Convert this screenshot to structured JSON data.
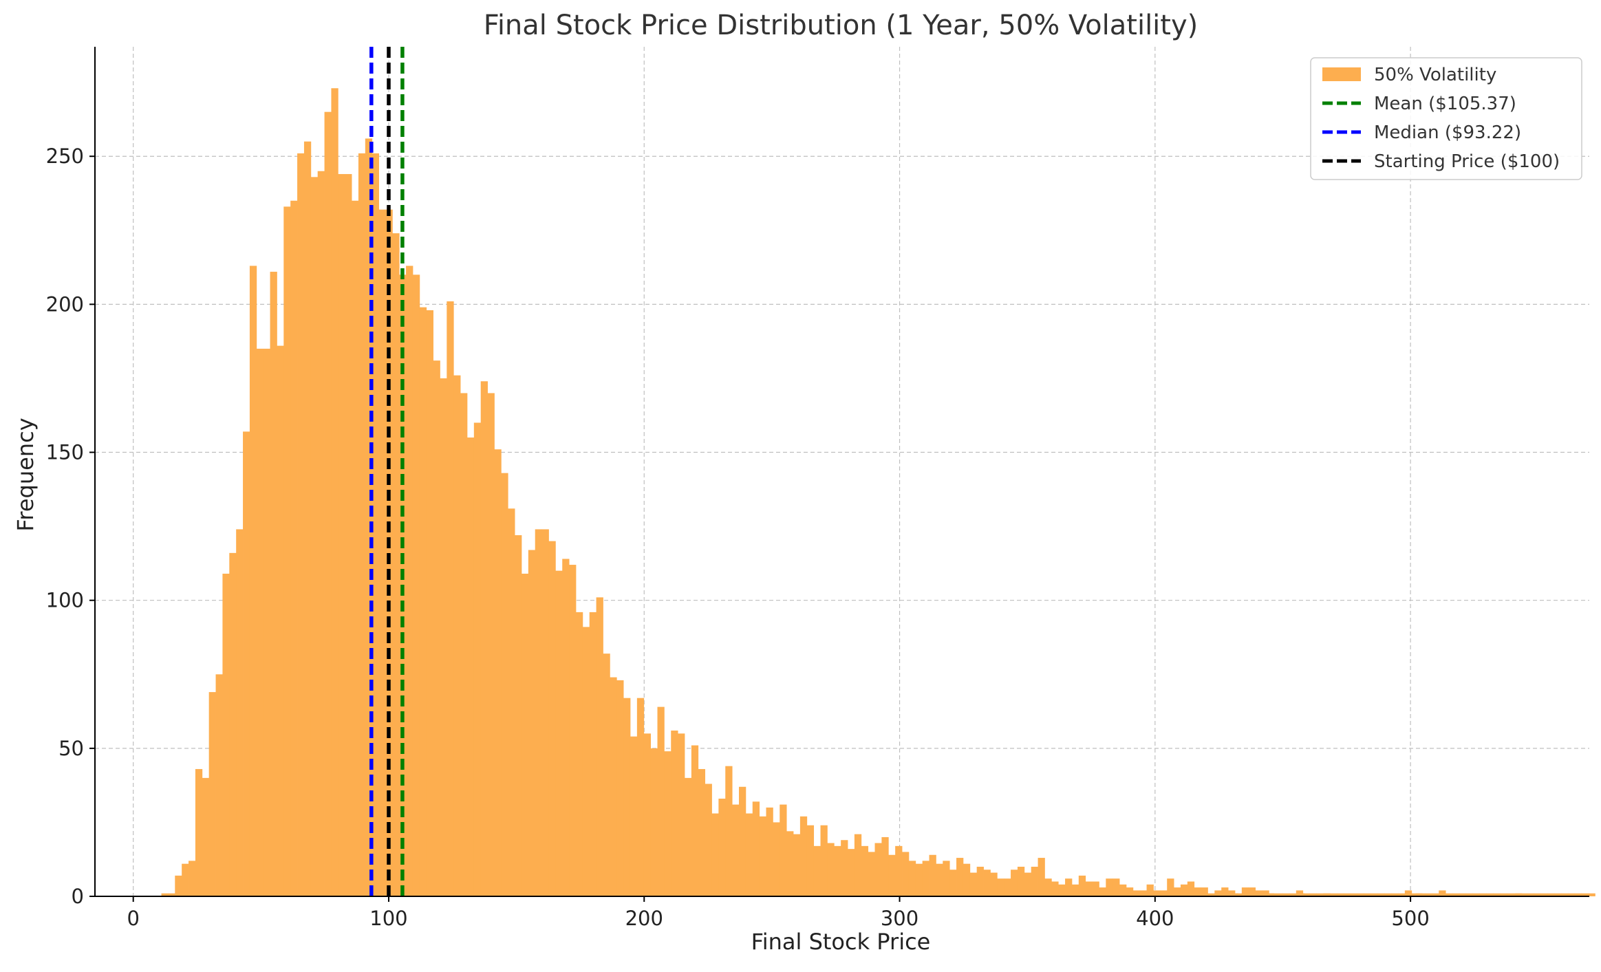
{
  "chart_data": {
    "type": "bar",
    "title": "Final Stock Price Distribution (1 Year, 50% Volatility)",
    "xlabel": "Final Stock Price",
    "ylabel": "Frequency",
    "xlim": [
      -15,
      570
    ],
    "ylim": [
      0,
      287
    ],
    "xticks": [
      0,
      100,
      200,
      300,
      400,
      500
    ],
    "yticks": [
      0,
      50,
      100,
      150,
      200,
      250
    ],
    "grid": true,
    "legend_position": "top-right",
    "bin_start": 11,
    "bin_width": 2.66,
    "histogram": {
      "name": "50% Volatility",
      "color": "#fdae4f",
      "counts": [
        1,
        1,
        7,
        11,
        12,
        43,
        40,
        69,
        75,
        109,
        116,
        124,
        157,
        213,
        185,
        185,
        211,
        186,
        233,
        235,
        251,
        255,
        243,
        245,
        265,
        273,
        244,
        244,
        235,
        251,
        256,
        251,
        232,
        232,
        224,
        210,
        213,
        210,
        199,
        198,
        181,
        175,
        201,
        176,
        170,
        155,
        160,
        174,
        170,
        151,
        143,
        131,
        122,
        109,
        117,
        124,
        124,
        120,
        110,
        114,
        112,
        96,
        91,
        96,
        101,
        82,
        74,
        73,
        67,
        54,
        67,
        55,
        50,
        64,
        49,
        56,
        55,
        40,
        51,
        43,
        38,
        28,
        33,
        44,
        31,
        37,
        28,
        32,
        27,
        30,
        25,
        31,
        22,
        21,
        27,
        24,
        17,
        24,
        18,
        17,
        19,
        16,
        21,
        17,
        15,
        18,
        20,
        14,
        17,
        15,
        12,
        11,
        12,
        14,
        11,
        12,
        9,
        13,
        11,
        8,
        10,
        9,
        8,
        6,
        6,
        9,
        10,
        8,
        10,
        13,
        6,
        5,
        4,
        6,
        4,
        7,
        5,
        5,
        3,
        6,
        6,
        4,
        3,
        2,
        2,
        4,
        2,
        2,
        6,
        3,
        4,
        5,
        3,
        3,
        1,
        2,
        3,
        2,
        1,
        3,
        3,
        2,
        2,
        1,
        1,
        1,
        1,
        2,
        1,
        1,
        1,
        1,
        1,
        1,
        1,
        1,
        1,
        1,
        1,
        1,
        1,
        1,
        1,
        2,
        1,
        1,
        1,
        1,
        2,
        1,
        1,
        1,
        1,
        1,
        1,
        1,
        1,
        1,
        1,
        1,
        1,
        1,
        1,
        1,
        1,
        1,
        1,
        1,
        1,
        1,
        1
      ]
    },
    "sparse_bins": [
      {
        "x": 430,
        "count": 1
      },
      {
        "x": 444,
        "count": 1
      },
      {
        "x": 456,
        "count": 1
      },
      {
        "x": 466,
        "count": 1
      },
      {
        "x": 502,
        "count": 1
      },
      {
        "x": 541,
        "count": 1
      }
    ],
    "lines": [
      {
        "name": "Mean ($105.37)",
        "x": 105.37,
        "color": "#008000"
      },
      {
        "name": "Median ($93.22)",
        "x": 93.22,
        "color": "#0000ff"
      },
      {
        "name": "Starting Price ($100)",
        "x": 100,
        "color": "#000000"
      }
    ]
  }
}
